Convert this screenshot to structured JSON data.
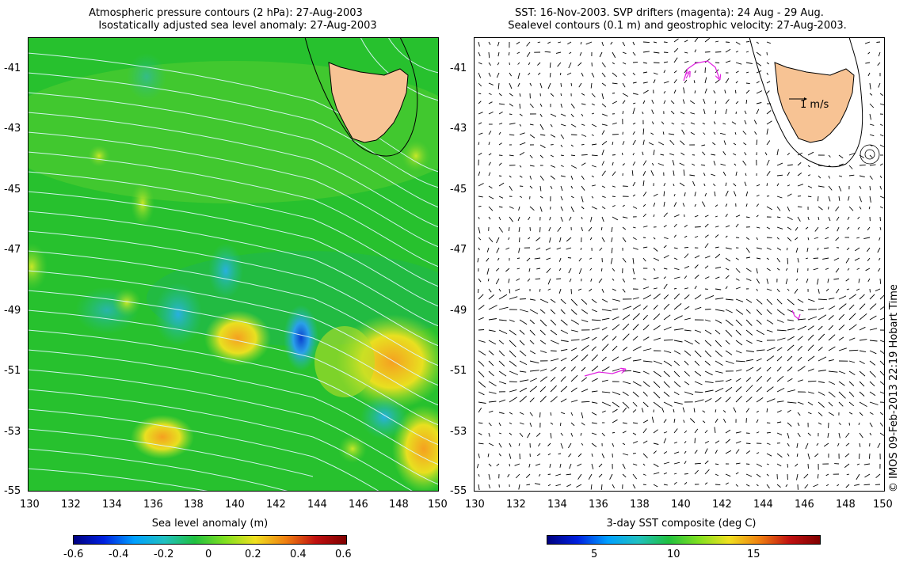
{
  "left_panel": {
    "title_line1": "Atmospheric pressure contours (2 hPa): 27-Aug-2003",
    "title_line2": "Isostatically adjusted sea level anomaly: 27-Aug-2003",
    "xticks": [
      "130",
      "132",
      "134",
      "136",
      "138",
      "140",
      "142",
      "144",
      "146",
      "148",
      "150"
    ],
    "yticks": [
      "-41",
      "-43",
      "-45",
      "-47",
      "-49",
      "-51",
      "-53",
      "-55"
    ],
    "colorbar": {
      "title": "Sea level anomaly (m)",
      "ticks": [
        "-0.6",
        "-0.4",
        "-0.2",
        "0",
        "0.2",
        "0.4",
        "0.6"
      ],
      "range": [
        -0.6,
        0.6
      ]
    }
  },
  "right_panel": {
    "title_line1": "SST: 16-Nov-2003. SVP drifters (magenta): 24 Aug - 29 Aug.",
    "title_line2": "Sealevel contours (0.1 m) and geostrophic velocity: 27-Aug-2003.",
    "xticks": [
      "130",
      "132",
      "134",
      "136",
      "138",
      "140",
      "142",
      "144",
      "146",
      "148",
      "150"
    ],
    "yticks": [
      "-41",
      "-43",
      "-45",
      "-47",
      "-49",
      "-51",
      "-53",
      "-55"
    ],
    "velocity_scale_label": "1 m/s",
    "colorbar": {
      "title": "3-day SST composite (deg C)",
      "ticks": [
        "5",
        "10",
        "15"
      ],
      "range": [
        2,
        19
      ]
    }
  },
  "map_extent": {
    "lon": [
      130,
      150
    ],
    "lat": [
      -55,
      -40
    ]
  },
  "credit": "© IMOS 09-Feb-2013 22:19 Hobart Time",
  "colors": {
    "land": "#f7c394",
    "ocean_base": "#27c12e",
    "drifters": "#e020e0"
  }
}
